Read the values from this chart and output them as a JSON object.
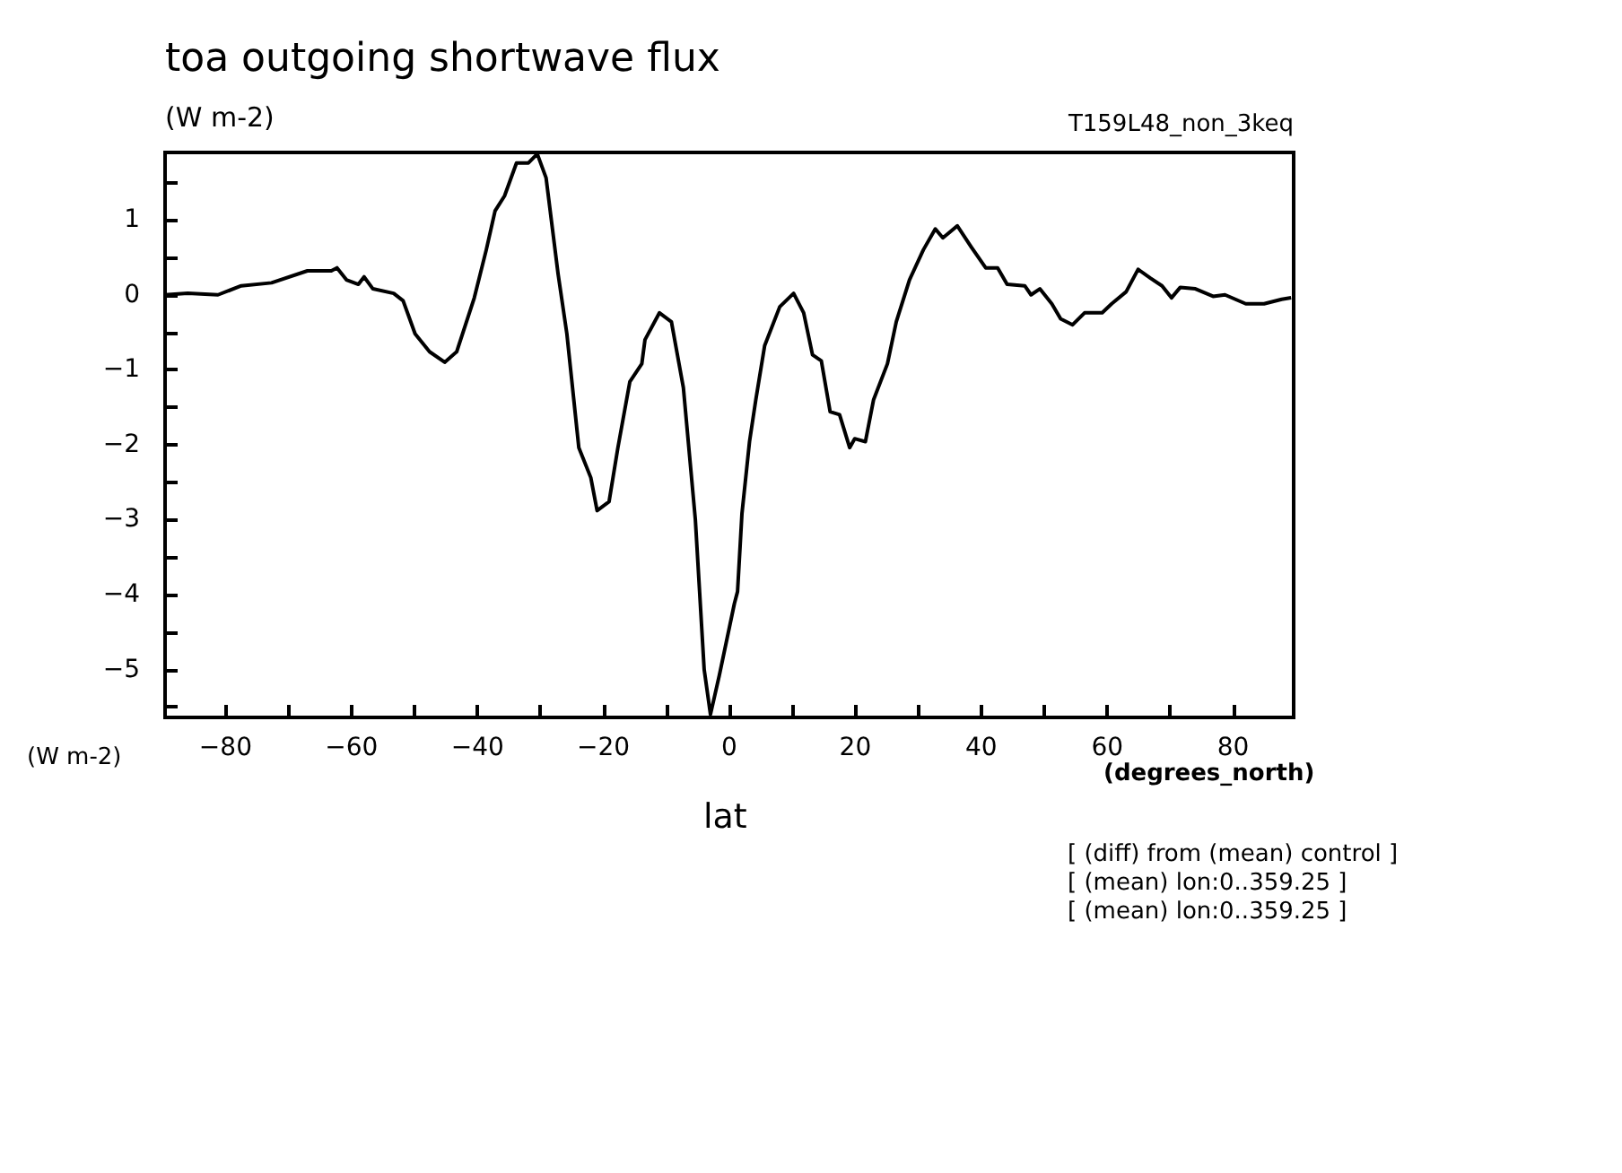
{
  "chart_data": {
    "type": "line",
    "title": "toa outgoing shortwave flux",
    "subtitle": "(W m-2)",
    "xlabel": "lat",
    "ylabel": "(W m-2)",
    "annotations": [
      "T159L48_non_3keq",
      "(degrees_north)",
      "[ (diff) from (mean) control ]",
      "[ (mean) lon:0..359.25 ]",
      "[ (mean) lon:0..359.25 ]"
    ],
    "xlim": [
      -89.6,
      89.6
    ],
    "ylim": [
      -5.64,
      1.9
    ],
    "xticks": [
      -80,
      {
        "value": -70,
        "label": null
      },
      -60,
      {
        "value": -50,
        "label": null
      },
      -40,
      {
        "value": -30,
        "label": null
      },
      -20,
      {
        "value": -10,
        "label": null
      },
      0,
      {
        "value": 10,
        "label": null
      },
      20,
      {
        "value": 30,
        "label": null
      },
      40,
      {
        "value": 50,
        "label": null
      },
      60,
      {
        "value": 70,
        "label": null
      },
      80
    ],
    "yticks": [
      {
        "value": -5.5,
        "label": null
      },
      -5,
      {
        "value": -4.5,
        "label": null
      },
      -4,
      {
        "value": -3.5,
        "label": null
      },
      -3,
      {
        "value": -2.5,
        "label": null
      },
      -2,
      {
        "value": -1.5,
        "label": null
      },
      -1,
      {
        "value": -0.5,
        "label": null
      },
      0,
      {
        "value": 0.5,
        "label": null
      },
      1,
      {
        "value": 1.5,
        "label": null
      }
    ],
    "grid": false,
    "marker": "none",
    "line_style": "solid",
    "series": [
      {
        "color": "#000000",
        "x": [
          -89.6,
          -86,
          -81.2,
          -77.5,
          -72.7,
          -67,
          -63.2,
          -62.3,
          -60.8,
          -58.9,
          -58,
          -56.6,
          -53.3,
          -51.8,
          -49.9,
          -47.6,
          -45.2,
          -43.3,
          -40.5,
          -38.6,
          -37.2,
          -35.7,
          -33.8,
          -31.9,
          -30.5,
          -29.1,
          -27.2,
          -25.8,
          -23.9,
          -22,
          -21,
          -19.1,
          -17.7,
          -15.8,
          -13.9,
          -13.4,
          -11.1,
          -9.2,
          -7.3,
          -5.4,
          -4,
          -3,
          -1.6,
          0.8,
          1.3,
          2,
          3.2,
          4.2,
          5.6,
          8,
          10.2,
          11.8,
          13.2,
          14.6,
          16,
          17.5,
          19.1,
          19.9,
          21.6,
          22.9,
          25.1,
          26.5,
          28.6,
          30.8,
          32.7,
          33.9,
          36.2,
          38.4,
          40.7,
          42.6,
          44.1,
          46.9,
          47.9,
          49.3,
          51.2,
          52.6,
          54.5,
          56.4,
          59.2,
          60.7,
          63,
          64.9,
          66.9,
          68.7,
          70.2,
          71.6,
          74,
          76.8,
          78.7,
          82,
          84.9,
          87.7,
          89.2
        ],
        "values": [
          0,
          0.02,
          0,
          0.12,
          0.16,
          0.32,
          0.32,
          0.36,
          0.2,
          0.14,
          0.24,
          0.08,
          0.02,
          -0.08,
          -0.52,
          -0.76,
          -0.9,
          -0.76,
          -0.04,
          0.6,
          1.12,
          1.32,
          1.76,
          1.76,
          1.88,
          1.56,
          0.28,
          -0.52,
          -2.04,
          -2.44,
          -2.88,
          -2.76,
          -2.04,
          -1.16,
          -0.92,
          -0.6,
          -0.24,
          -0.36,
          -1.24,
          -3,
          -5,
          -5.6,
          -5.08,
          -4.12,
          -3.96,
          -2.92,
          -1.96,
          -1.4,
          -0.68,
          -0.16,
          0.02,
          -0.24,
          -0.8,
          -0.88,
          -1.56,
          -1.6,
          -2.04,
          -1.92,
          -1.96,
          -1.4,
          -0.92,
          -0.36,
          0.2,
          0.6,
          0.88,
          0.76,
          0.92,
          0.64,
          0.36,
          0.36,
          0.14,
          0.12,
          0,
          0.08,
          -0.12,
          -0.32,
          -0.4,
          -0.24,
          -0.24,
          -0.12,
          0.04,
          0.34,
          0.22,
          0.12,
          -0.04,
          0.1,
          0.08,
          -0.02,
          0,
          -0.12,
          -0.12,
          -0.06,
          -0.04
        ]
      }
    ]
  }
}
